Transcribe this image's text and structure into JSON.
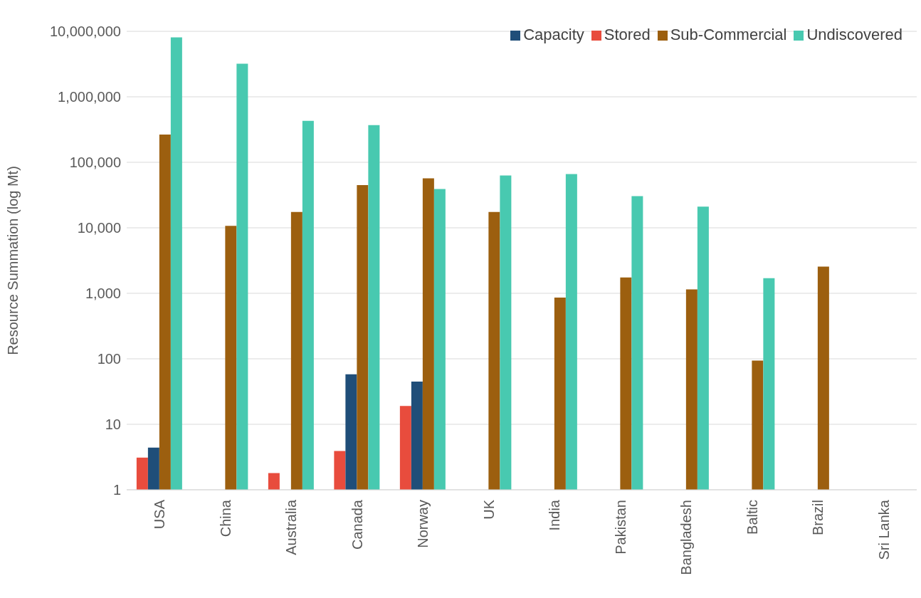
{
  "chart_data": {
    "type": "bar",
    "ylabel": "Resource Summation (log Mt)",
    "log": "y",
    "grid": "y",
    "legend": "top right",
    "categories": [
      "USA",
      "China",
      "Australia",
      "Canada",
      "Norway",
      "UK",
      "India",
      "Pakistan",
      "Bangladesh",
      "Baltic",
      "Brazil",
      "Sri Lanka"
    ],
    "series": [
      {
        "name": "Stored",
        "color": "#e84c3d",
        "values": [
          3.1,
          null,
          1.8,
          3.9,
          19,
          null,
          null,
          null,
          null,
          null,
          null,
          null
        ]
      },
      {
        "name": "Capacity",
        "color": "#1f4e79",
        "values": [
          4.4,
          null,
          null,
          58,
          45,
          null,
          null,
          null,
          null,
          null,
          null,
          null
        ]
      },
      {
        "name": "Sub-Commercial",
        "color": "#9c5f0f",
        "values": [
          265000,
          10700,
          17400,
          45000,
          57000,
          17400,
          860,
          1740,
          1150,
          94,
          2560,
          null
        ]
      },
      {
        "name": "Undiscovered",
        "color": "#48c9b0",
        "values": [
          8100000,
          3200000,
          430000,
          370000,
          39000,
          63000,
          66000,
          30500,
          21000,
          1700,
          null,
          null
        ]
      }
    ],
    "ylim": [
      1,
      10000000
    ],
    "yticks": [
      {
        "value": 1,
        "label": "1"
      },
      {
        "value": 10,
        "label": "10"
      },
      {
        "value": 100,
        "label": "100"
      },
      {
        "value": 1000,
        "label": "1,000"
      },
      {
        "value": 10000,
        "label": "10,000"
      },
      {
        "value": 100000,
        "label": "100,000"
      },
      {
        "value": 1000000,
        "label": "1,000,000"
      },
      {
        "value": 10000000,
        "label": "10,000,000"
      }
    ]
  }
}
